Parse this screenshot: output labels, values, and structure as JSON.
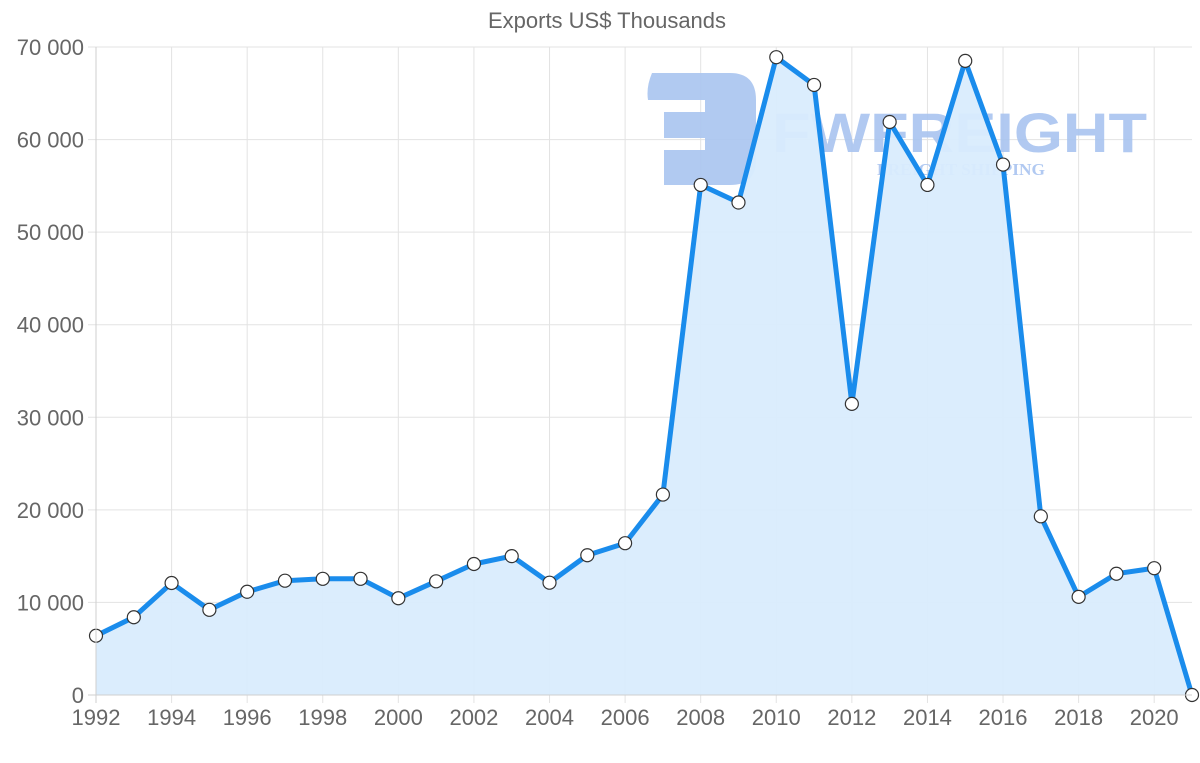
{
  "chart_data": {
    "type": "area",
    "title": "Exports US$ Thousands",
    "xlabel": "",
    "ylabel": "",
    "x": [
      1992,
      1993,
      1994,
      1995,
      1996,
      1997,
      1998,
      1999,
      2000,
      2001,
      2002,
      2003,
      2004,
      2005,
      2006,
      2007,
      2008,
      2009,
      2010,
      2011,
      2012,
      2013,
      2014,
      2015,
      2016,
      2017,
      2018,
      2019,
      2020,
      2021
    ],
    "series": [
      {
        "name": "Exports US$ Thousands",
        "values": [
          6400,
          8400,
          12100,
          9200,
          11150,
          12350,
          12550,
          12550,
          10450,
          12280,
          14150,
          15000,
          12130,
          15100,
          16400,
          21650,
          55100,
          53200,
          68900,
          65900,
          31450,
          61900,
          55100,
          68500,
          57300,
          19300,
          10600,
          13100,
          13700,
          0
        ]
      }
    ],
    "xlim": [
      1992,
      2021
    ],
    "ylim": [
      0,
      70000
    ],
    "yticks": [
      0,
      10000,
      20000,
      30000,
      40000,
      50000,
      60000,
      70000
    ],
    "ytick_labels": [
      "0",
      "10 000",
      "20 000",
      "30 000",
      "40 000",
      "50 000",
      "60 000",
      "70 000"
    ],
    "xticks": [
      1992,
      1994,
      1996,
      1998,
      2000,
      2002,
      2004,
      2006,
      2008,
      2010,
      2012,
      2014,
      2016,
      2018,
      2020
    ],
    "xtick_labels": [
      "1992",
      "1994",
      "1996",
      "1998",
      "2000",
      "2002",
      "2004",
      "2006",
      "2008",
      "2010",
      "2012",
      "2014",
      "2016",
      "2018",
      "2020"
    ],
    "grid": true,
    "legend": "none",
    "colors": {
      "line": "#1a8cec",
      "fill": "#d9ecfd",
      "marker_fill": "#ffffff",
      "marker_stroke": "#333333"
    }
  },
  "watermark": {
    "brand": "FWFREIGHT",
    "tagline": "FREIGHT SHIPPING",
    "color": "#a9c4f0"
  }
}
